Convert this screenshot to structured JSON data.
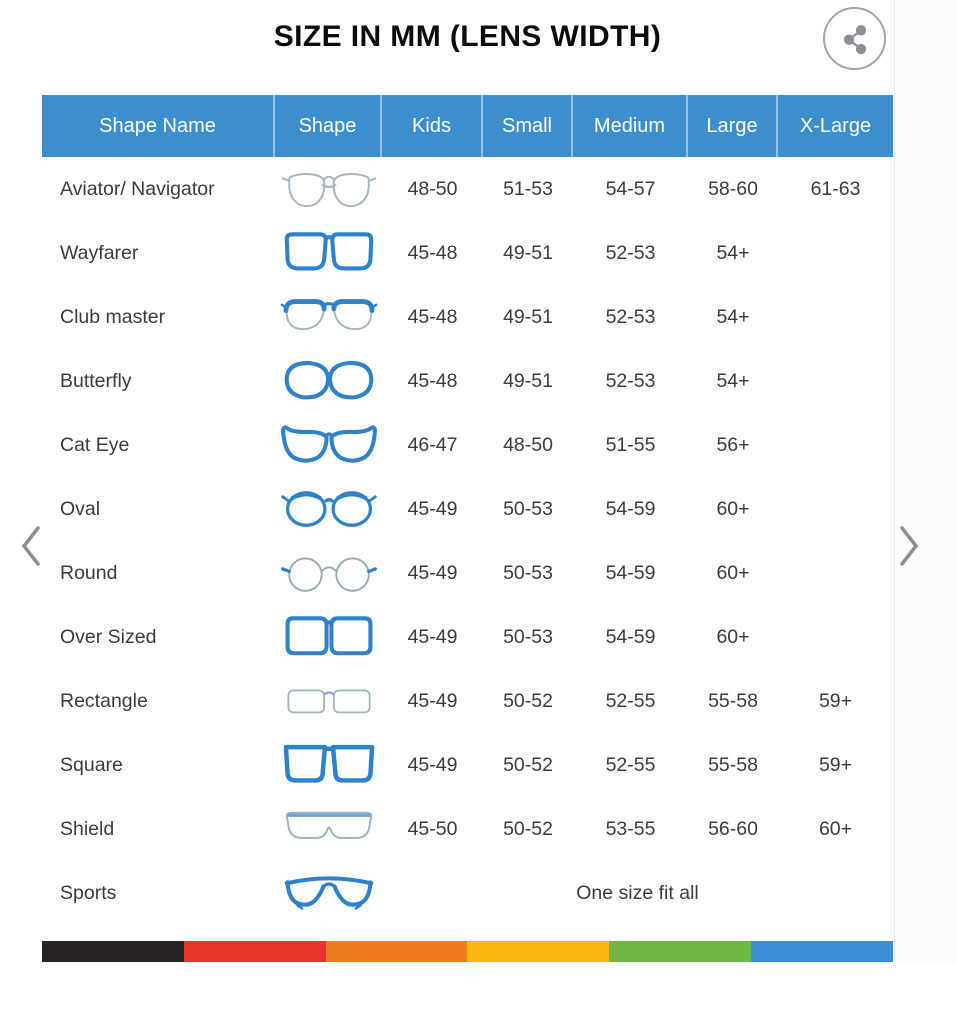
{
  "title": "SIZE IN MM (LENS WIDTH)",
  "toolbar": {
    "share_icon": "share-icon"
  },
  "carousel": {
    "prev_icon": "chevron-left-icon",
    "next_icon": "chevron-right-icon"
  },
  "table": {
    "columns": [
      "Shape Name",
      "Shape",
      "Kids",
      "Small",
      "Medium",
      "Large",
      "X-Large"
    ],
    "rows": [
      {
        "name": "Aviator/ Navigator",
        "icon": "aviator-glasses-icon",
        "values": {
          "kids": "48-50",
          "small": "51-53",
          "medium": "54-57",
          "large": "58-60",
          "xlarge": "61-63"
        }
      },
      {
        "name": "Wayfarer",
        "icon": "wayfarer-glasses-icon",
        "values": {
          "kids": "45-48",
          "small": "49-51",
          "medium": "52-53",
          "large": "54+",
          "xlarge": ""
        }
      },
      {
        "name": "Club master",
        "icon": "clubmaster-glasses-icon",
        "values": {
          "kids": "45-48",
          "small": "49-51",
          "medium": "52-53",
          "large": "54+",
          "xlarge": ""
        }
      },
      {
        "name": "Butterfly",
        "icon": "butterfly-glasses-icon",
        "values": {
          "kids": "45-48",
          "small": "49-51",
          "medium": "52-53",
          "large": "54+",
          "xlarge": ""
        }
      },
      {
        "name": "Cat Eye",
        "icon": "cateye-glasses-icon",
        "values": {
          "kids": "46-47",
          "small": "48-50",
          "medium": "51-55",
          "large": "56+",
          "xlarge": ""
        }
      },
      {
        "name": "Oval",
        "icon": "oval-glasses-icon",
        "values": {
          "kids": "45-49",
          "small": "50-53",
          "medium": "54-59",
          "large": "60+",
          "xlarge": ""
        }
      },
      {
        "name": "Round",
        "icon": "round-glasses-icon",
        "values": {
          "kids": "45-49",
          "small": "50-53",
          "medium": "54-59",
          "large": "60+",
          "xlarge": ""
        }
      },
      {
        "name": "Over Sized",
        "icon": "oversized-glasses-icon",
        "values": {
          "kids": "45-49",
          "small": "50-53",
          "medium": "54-59",
          "large": "60+",
          "xlarge": ""
        }
      },
      {
        "name": "Rectangle",
        "icon": "rectangle-glasses-icon",
        "values": {
          "kids": "45-49",
          "small": "50-52",
          "medium": "52-55",
          "large": "55-58",
          "xlarge": "59+"
        }
      },
      {
        "name": "Square",
        "icon": "square-glasses-icon",
        "values": {
          "kids": "45-49",
          "small": "50-52",
          "medium": "52-55",
          "large": "55-58",
          "xlarge": "59+"
        }
      },
      {
        "name": "Shield",
        "icon": "shield-glasses-icon",
        "values": {
          "kids": "45-50",
          "small": "50-52",
          "medium": "53-55",
          "large": "56-60",
          "xlarge": "60+"
        }
      },
      {
        "name": "Sports",
        "icon": "sports-glasses-icon",
        "span_text": "One size fit all"
      }
    ]
  },
  "colors": {
    "header_bg": "#3c8ecf",
    "header_text": "#ffffff",
    "bold_frame": "#2e81cb",
    "light_frame": "#a3b4be",
    "footer_bar": [
      "#262223",
      "#e8352c",
      "#ee7d1f",
      "#fdb713",
      "#6eb844",
      "#3a8ed6"
    ]
  }
}
